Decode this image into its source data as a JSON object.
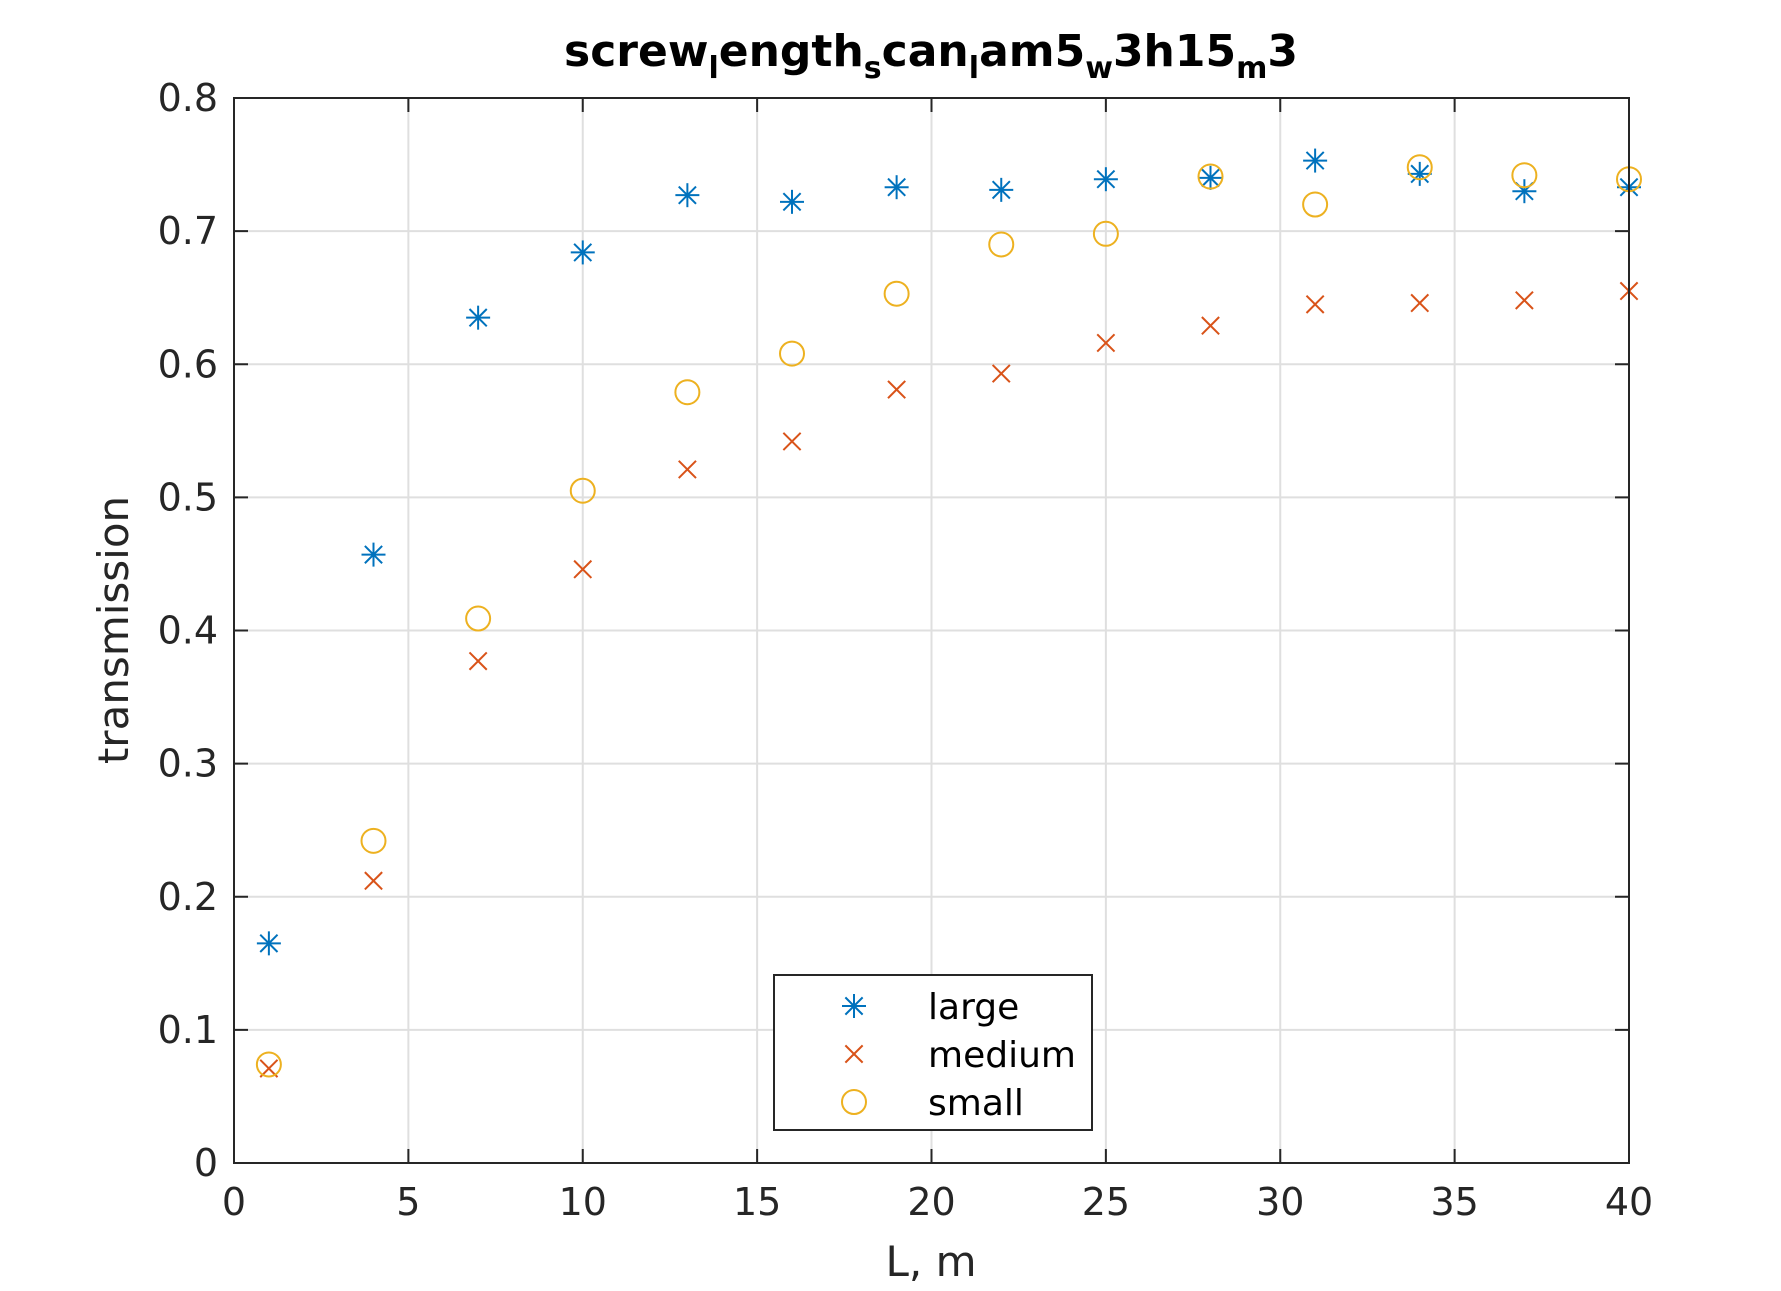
{
  "chart_data": {
    "type": "scatter",
    "title": {
      "parts": [
        {
          "text": "screw",
          "sub": false
        },
        {
          "text": "l",
          "sub": true
        },
        {
          "text": "ength",
          "sub": false
        },
        {
          "text": "s",
          "sub": true
        },
        {
          "text": "can",
          "sub": false
        },
        {
          "text": "l",
          "sub": true
        },
        {
          "text": "am5",
          "sub": false
        },
        {
          "text": "w",
          "sub": true
        },
        {
          "text": "3h15",
          "sub": false
        },
        {
          "text": "m",
          "sub": true
        },
        {
          "text": "3",
          "sub": false
        }
      ]
    },
    "xlabel": "L, m",
    "ylabel": "transmission",
    "xlim": [
      0,
      40
    ],
    "ylim": [
      0,
      0.8
    ],
    "xticks": [
      0,
      5,
      10,
      15,
      20,
      25,
      30,
      35,
      40
    ],
    "yticks": [
      0,
      0.1,
      0.2,
      0.3,
      0.4,
      0.5,
      0.6,
      0.7,
      0.8
    ],
    "xtick_labels": [
      "0",
      "5",
      "10",
      "15",
      "20",
      "25",
      "30",
      "35",
      "40"
    ],
    "ytick_labels": [
      "0",
      "0.1",
      "0.2",
      "0.3",
      "0.4",
      "0.5",
      "0.6",
      "0.7",
      "0.8"
    ],
    "grid": true,
    "legend_position": "bottom-center",
    "x": [
      1,
      4,
      7,
      10,
      13,
      16,
      19,
      22,
      25,
      28,
      31,
      34,
      37,
      40
    ],
    "series": [
      {
        "name": "large",
        "marker": "asterisk",
        "color": "#0072BD",
        "values": [
          0.165,
          0.457,
          0.635,
          0.684,
          0.727,
          0.722,
          0.733,
          0.731,
          0.739,
          0.74,
          0.753,
          0.743,
          0.73,
          0.733
        ]
      },
      {
        "name": "medium",
        "marker": "x",
        "color": "#D95319",
        "values": [
          0.071,
          0.212,
          0.377,
          0.446,
          0.521,
          0.542,
          0.581,
          0.593,
          0.616,
          0.629,
          0.645,
          0.646,
          0.648,
          0.655
        ]
      },
      {
        "name": "small",
        "marker": "circle",
        "color": "#EDB120",
        "values": [
          0.074,
          0.242,
          0.409,
          0.505,
          0.579,
          0.608,
          0.653,
          0.69,
          0.698,
          0.741,
          0.72,
          0.748,
          0.742,
          0.739
        ]
      }
    ]
  }
}
